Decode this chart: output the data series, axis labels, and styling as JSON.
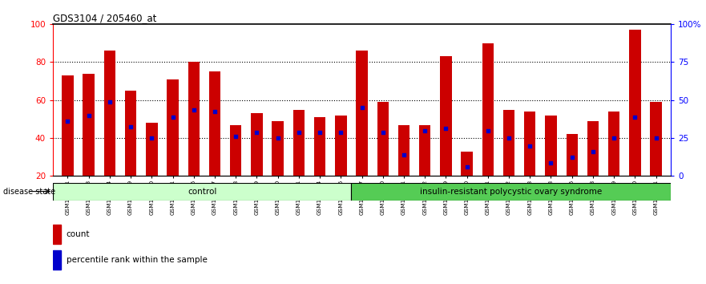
{
  "title": "GDS3104 / 205460_at",
  "samples": [
    "GSM155631",
    "GSM155643",
    "GSM155644",
    "GSM155729",
    "GSM156170",
    "GSM156171",
    "GSM156176",
    "GSM156177",
    "GSM156178",
    "GSM156179",
    "GSM156180",
    "GSM156181",
    "GSM156184",
    "GSM156186",
    "GSM156187",
    "GSM156510",
    "GSM156511",
    "GSM156512",
    "GSM156749",
    "GSM156750",
    "GSM156751",
    "GSM156752",
    "GSM156753",
    "GSM156763",
    "GSM156946",
    "GSM156948",
    "GSM156949",
    "GSM156950",
    "GSM156951"
  ],
  "bar_heights": [
    73,
    74,
    86,
    65,
    48,
    71,
    80,
    75,
    47,
    53,
    49,
    55,
    51,
    52,
    86,
    59,
    47,
    47,
    83,
    33,
    90,
    55,
    54,
    52,
    42,
    49,
    54,
    97,
    59
  ],
  "blue_dots": [
    49,
    52,
    59,
    46,
    40,
    51,
    55,
    54,
    41,
    43,
    40,
    43,
    43,
    43,
    56,
    43,
    31,
    44,
    45,
    25,
    44,
    40,
    36,
    27,
    30,
    33,
    40,
    51,
    40
  ],
  "control_count": 14,
  "bar_color": "#CC0000",
  "dot_color": "#0000CC",
  "control_bg": "#CCFFCC",
  "pcos_bg": "#55CC55",
  "bar_bottom": 20,
  "y_min": 20,
  "y_max": 100,
  "y_ticks_left": [
    20,
    40,
    60,
    80,
    100
  ],
  "right_y_ticks": [
    0,
    25,
    50,
    75,
    100
  ],
  "right_y_labels": [
    "0",
    "25",
    "50",
    "75",
    "100%"
  ],
  "dotted_lines": [
    40,
    60,
    80
  ],
  "legend_count_label": "count",
  "legend_pct_label": "percentile rank within the sample",
  "disease_state_label": "disease state",
  "control_label": "control",
  "pcos_label": "insulin-resistant polycystic ovary syndrome"
}
